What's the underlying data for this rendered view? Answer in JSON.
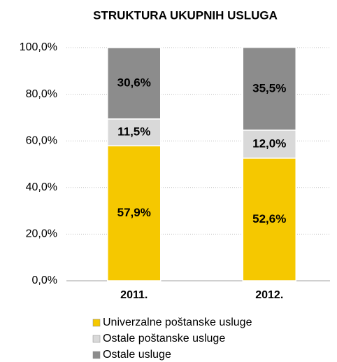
{
  "chart_data": {
    "type": "stacked_bar",
    "title": "STRUKTURA UKUPNIH USLUGA",
    "categories": [
      "2011.",
      "2012."
    ],
    "series": [
      {
        "name": "Univerzalne poštanske usluge",
        "color": "#f5c800",
        "values": [
          57.9,
          52.6
        ],
        "value_labels": [
          "57,9%",
          "52,6%"
        ]
      },
      {
        "name": "Ostale poštanske usluge",
        "color": "#d9d9d9",
        "values": [
          11.5,
          12.0
        ],
        "value_labels": [
          "11,5%",
          "12,0%"
        ]
      },
      {
        "name": "Ostale usluge",
        "color": "#8c8c8c",
        "values": [
          30.6,
          35.5
        ],
        "value_labels": [
          "30,6%",
          "35,5%"
        ]
      }
    ],
    "ylim": [
      0,
      100
    ],
    "yticks": [
      {
        "value": 0,
        "label": "0,0%"
      },
      {
        "value": 20,
        "label": "20,0%"
      },
      {
        "value": 40,
        "label": "40,0%"
      },
      {
        "value": 60,
        "label": "60,0%"
      },
      {
        "value": 80,
        "label": "80,0%"
      },
      {
        "value": 100,
        "label": "100,0%"
      }
    ],
    "grid": true
  }
}
